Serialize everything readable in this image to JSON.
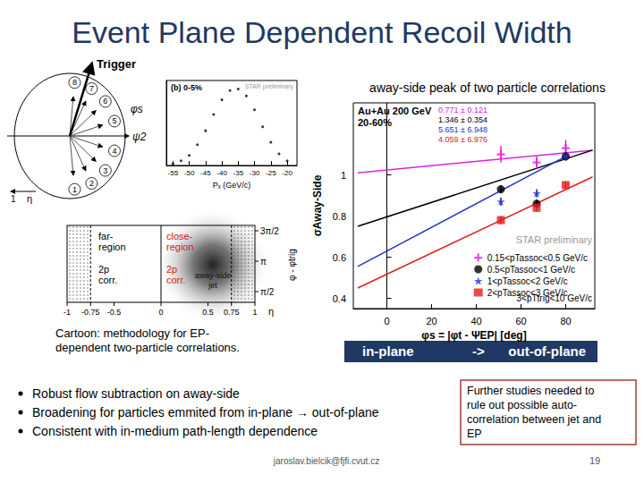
{
  "slide": {
    "title": "Event Plane Dependent Recoil Width",
    "chart_caption": "away-side peak of two particle correlations",
    "direction_bar": [
      "in-plane",
      "->",
      "out-of-plane"
    ],
    "ep_diagram": {
      "trigger": "Trigger",
      "phi_s": "φs",
      "psi_2": "ψ2",
      "bins": [
        "1",
        "2",
        "3",
        "4",
        "5",
        "6",
        "7",
        "8"
      ],
      "axis_labels": [
        "1",
        "η"
      ]
    },
    "cartoon": {
      "far_region": [
        "far-",
        "region"
      ],
      "close_region": [
        "close-",
        "region"
      ],
      "corr_labels": [
        [
          "2p",
          "corr."
        ],
        [
          "2p",
          "corr."
        ]
      ],
      "jet_label": [
        "away-side",
        "jet"
      ],
      "eta_ticks": [
        -1,
        -0.75,
        -0.5,
        0,
        0.5,
        0.75,
        1
      ],
      "eta_label": "η",
      "dphi_ticks": [
        "3π/2",
        "π",
        "π/2"
      ],
      "dphi_label": "φ - φtrig",
      "caption": [
        "Cartoon: methodology for EP-",
        "dependent two-particle correlations."
      ]
    },
    "bullets": [
      "Robust flow subtraction on away-side",
      "Broadening for particles emmited from in-plane → out-of-plane",
      "Consistent with in-medium path-length dependence"
    ],
    "note": [
      "Further studies needed to",
      "rule  out possible auto-",
      "correlation between jet and",
      "EP"
    ],
    "footer": "jaroslav.bielcik@fjfi.cvut.cz",
    "page": "19"
  },
  "chart_data": [
    {
      "type": "scatter",
      "xlabel": "φs = |φt - ΨEP| [deg]",
      "ylabel": "σAway-Side",
      "collision": "Au+Au 200 GeV",
      "centrality": "20-60%",
      "watermark": "STAR preliminary",
      "trigger_cut": "3<pTtrig<10 GeV/c",
      "xlim": [
        -15,
        93
      ],
      "xticks": [
        0,
        20,
        40,
        60,
        80
      ],
      "ylim": [
        0.35,
        1.35
      ],
      "yticks": [
        0.4,
        0.6,
        0.8,
        1
      ],
      "legend": "lower right",
      "grid": false,
      "series": [
        {
          "name": "0.15<pTassoc<0.5 GeV/c",
          "color": "#e020e0",
          "marker": "cross",
          "x": [
            51,
            67,
            80
          ],
          "values": [
            1.1,
            1.06,
            1.13
          ],
          "errors": [
            0.04,
            0.03,
            0.04
          ],
          "fit_label": "0.771 ± 0.121",
          "fit_x": [
            -13,
            92
          ],
          "fit_y": [
            1.01,
            1.12
          ]
        },
        {
          "name": "0.5<pTassoc<1 GeV/c",
          "color": "#000000",
          "marker": "circle",
          "x": [
            51,
            67,
            80
          ],
          "values": [
            0.93,
            0.86,
            1.09
          ],
          "errors": [
            0.02,
            0.02,
            0.02
          ],
          "fit_label": "1.346 ± 0.354",
          "fit_x": [
            -13,
            92
          ],
          "fit_y": [
            0.75,
            1.12
          ]
        },
        {
          "name": "1<pTassoc<2 GeV/c",
          "color": "#2233cc",
          "marker": "star",
          "x": [
            51,
            67,
            80
          ],
          "values": [
            0.87,
            0.91,
            1.09
          ],
          "errors": [
            0.02,
            0.02,
            0.02
          ],
          "fit_label": "5.651 ± 6.948",
          "fit_x": [
            -13,
            80
          ],
          "fit_y": [
            0.555,
            1.09
          ]
        },
        {
          "name": "2<pTassoc<3 GeV/c",
          "color": "#e02020",
          "marker": "square",
          "x": [
            51,
            67,
            80
          ],
          "values": [
            0.78,
            0.84,
            0.95
          ],
          "errors": [
            0.02,
            0.02,
            0.02
          ],
          "fit_label": "4.059 ± 6.976",
          "fit_x": [
            -13,
            92
          ],
          "fit_y": [
            0.45,
            0.99
          ]
        }
      ]
    },
    {
      "type": "scatter",
      "title": "(b) 0-5%",
      "watermark": "STAR preliminary",
      "xlabel": "Pₓ (GeV/c)",
      "xlim": [
        -57,
        -17
      ],
      "xticks": [
        -55,
        -50,
        -45,
        -40,
        -35,
        -30,
        -25,
        -20
      ],
      "ylim": [
        0,
        1.1
      ],
      "tick_labels": "x",
      "grid": false,
      "color": "#000000",
      "marker": "circle",
      "x": [
        -55,
        -52.5,
        -50,
        -47.5,
        -45,
        -42.5,
        -40,
        -37.5,
        -35,
        -32.5,
        -30,
        -27.5,
        -25,
        -22.5,
        -20
      ],
      "values": [
        0.02,
        0.06,
        0.13,
        0.27,
        0.45,
        0.66,
        0.85,
        0.97,
        0.99,
        0.9,
        0.72,
        0.5,
        0.3,
        0.15,
        0.06
      ]
    }
  ]
}
